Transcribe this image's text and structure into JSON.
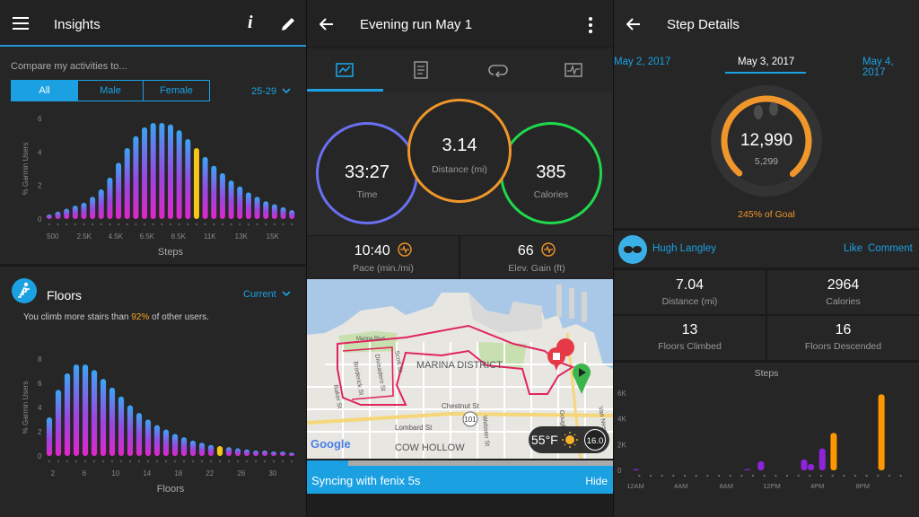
{
  "insights": {
    "title": "Insights",
    "compare_label": "Compare my activities to...",
    "filters": [
      "All",
      "Male",
      "Female"
    ],
    "age_range": "25-29",
    "steps_chart": {
      "ylabel": "% Garmin Users",
      "xlabel": "Steps",
      "y_ticks": [
        "6",
        "4",
        "2",
        "0"
      ],
      "x_ticks": [
        "500",
        "2.5K",
        "4.5K",
        "6.5K",
        "8.5K",
        "11K",
        "13K",
        "15K"
      ],
      "values": [
        0.3,
        0.5,
        0.7,
        0.9,
        1.1,
        1.5,
        2.0,
        2.8,
        3.8,
        4.8,
        5.6,
        6.2,
        6.5,
        6.5,
        6.4,
        6.0,
        5.4,
        4.8,
        4.2,
        3.6,
        3.1,
        2.6,
        2.2,
        1.8,
        1.5,
        1.2,
        1.0,
        0.8,
        0.6
      ],
      "highlight_index": 17,
      "ymax": 6.8
    },
    "floors": {
      "title": "Floors",
      "period": "Current",
      "desc_prefix": "You climb more stairs than ",
      "percent": "92%",
      "desc_suffix": " of other users.",
      "chart": {
        "ylabel": "% Garmin Users",
        "xlabel": "Floors",
        "y_ticks": [
          "8",
          "6",
          "4",
          "2",
          "0"
        ],
        "x_ticks": [
          "2",
          "6",
          "10",
          "14",
          "18",
          "22",
          "26",
          "30"
        ],
        "values": [
          3.5,
          6.0,
          7.5,
          8.3,
          8.3,
          7.8,
          7.0,
          6.2,
          5.4,
          4.6,
          3.9,
          3.3,
          2.8,
          2.4,
          2.0,
          1.7,
          1.4,
          1.2,
          1.0,
          0.9,
          0.8,
          0.7,
          0.6,
          0.5,
          0.5,
          0.4,
          0.4,
          0.3
        ],
        "highlight_index": 19,
        "ymax": 8.8
      }
    }
  },
  "run": {
    "title": "Evening run May 1",
    "tabs": [
      "summary-icon",
      "notes-icon",
      "loop-icon",
      "chart-icon"
    ],
    "time": {
      "value": "33:27",
      "label": "Time"
    },
    "distance": {
      "value": "3.14",
      "label": "Distance (mi)"
    },
    "calories": {
      "value": "385",
      "label": "Calories"
    },
    "pace": {
      "value": "10:40",
      "label": "Pace (min./mi)"
    },
    "elev": {
      "value": "66",
      "label": "Elev. Gain (ft)"
    },
    "map": {
      "district1": "MARINA DISTRICT",
      "district2": "COW HOLLOW",
      "streets": [
        "Marina Blvd",
        "Baker St",
        "Broderick St",
        "Divisadero St",
        "Scott St",
        "Chestnut St",
        "Lombard St",
        "Webster St",
        "Gough St",
        "Van Ness"
      ],
      "highway": "101",
      "google": "Google",
      "weather": "55°F",
      "wind": "16.0"
    },
    "sync": {
      "text": "Syncing with fenix 5s",
      "hide": "Hide"
    }
  },
  "steps": {
    "title": "Step Details",
    "dates": [
      "May 2, 2017",
      "May 3, 2017",
      "May 4, 2017"
    ],
    "total": "12,990",
    "goal": "5,299",
    "goal_text": "245% of Goal",
    "goal_progress": 1.0,
    "user": "Hugh Langley",
    "like": "Like",
    "comment": "Comment",
    "stats": [
      {
        "value": "7.04",
        "label": "Distance (mi)"
      },
      {
        "value": "2964",
        "label": "Calories"
      },
      {
        "value": "13",
        "label": "Floors Climbed"
      },
      {
        "value": "16",
        "label": "Floors Descended"
      }
    ],
    "chart": {
      "title": "Steps",
      "y_ticks": [
        "6K",
        "4K",
        "2K",
        "0"
      ],
      "x_ticks": [
        "12AM",
        "4AM",
        "8AM",
        "12PM",
        "4PM",
        "8PM"
      ],
      "bars": [
        {
          "hour": 0.2,
          "value": 100,
          "color": "#8e24d8"
        },
        {
          "hour": 10.0,
          "value": 100,
          "color": "#8e24d8"
        },
        {
          "hour": 11.2,
          "value": 700,
          "color": "#8e24d8"
        },
        {
          "hour": 15.0,
          "value": 850,
          "color": "#8e24d8"
        },
        {
          "hour": 15.6,
          "value": 500,
          "color": "#8e24d8"
        },
        {
          "hour": 16.6,
          "value": 1700,
          "color": "#8e24d8"
        },
        {
          "hour": 17.6,
          "value": 2900,
          "color": "#ff9800"
        },
        {
          "hour": 21.8,
          "value": 5900,
          "color": "#ff9800"
        }
      ],
      "ymax": 6000
    }
  }
}
